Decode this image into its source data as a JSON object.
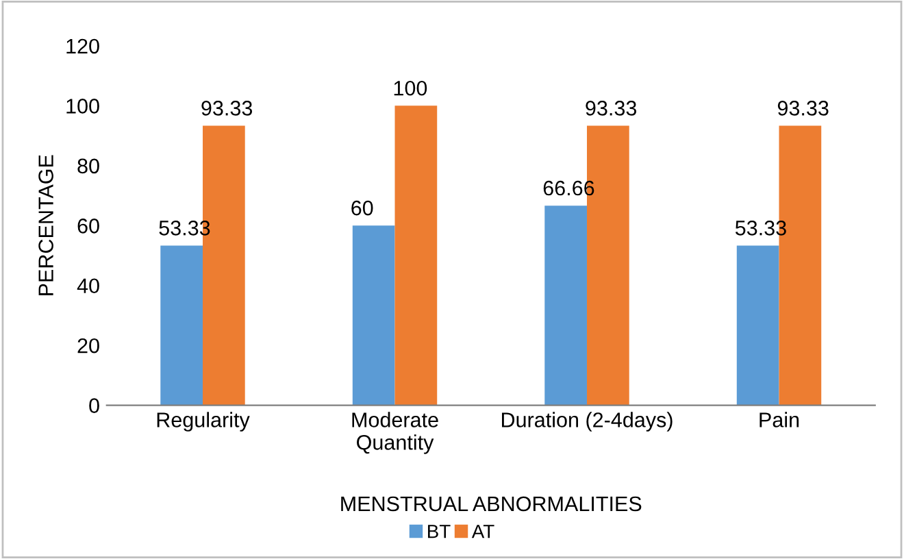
{
  "chart_data": {
    "type": "bar",
    "xlabel": "MENSTRUAL ABNORMALITIES",
    "ylabel": "PERCENTAGE",
    "categories": [
      "Regularity",
      "Moderate\nQuantity",
      "Duration (2-4days)",
      "Pain"
    ],
    "series": [
      {
        "name": "BT",
        "color": "#5b9bd5",
        "values": [
          53.33,
          60,
          66.66,
          53.33
        ]
      },
      {
        "name": "AT",
        "color": "#ed7d31",
        "values": [
          93.33,
          100,
          93.33,
          93.33
        ]
      }
    ],
    "ylim": [
      0,
      120
    ],
    "yticks": [
      0,
      20,
      40,
      60,
      80,
      100,
      120
    ],
    "grid": false,
    "legend": "bottom",
    "data_labels": true
  }
}
